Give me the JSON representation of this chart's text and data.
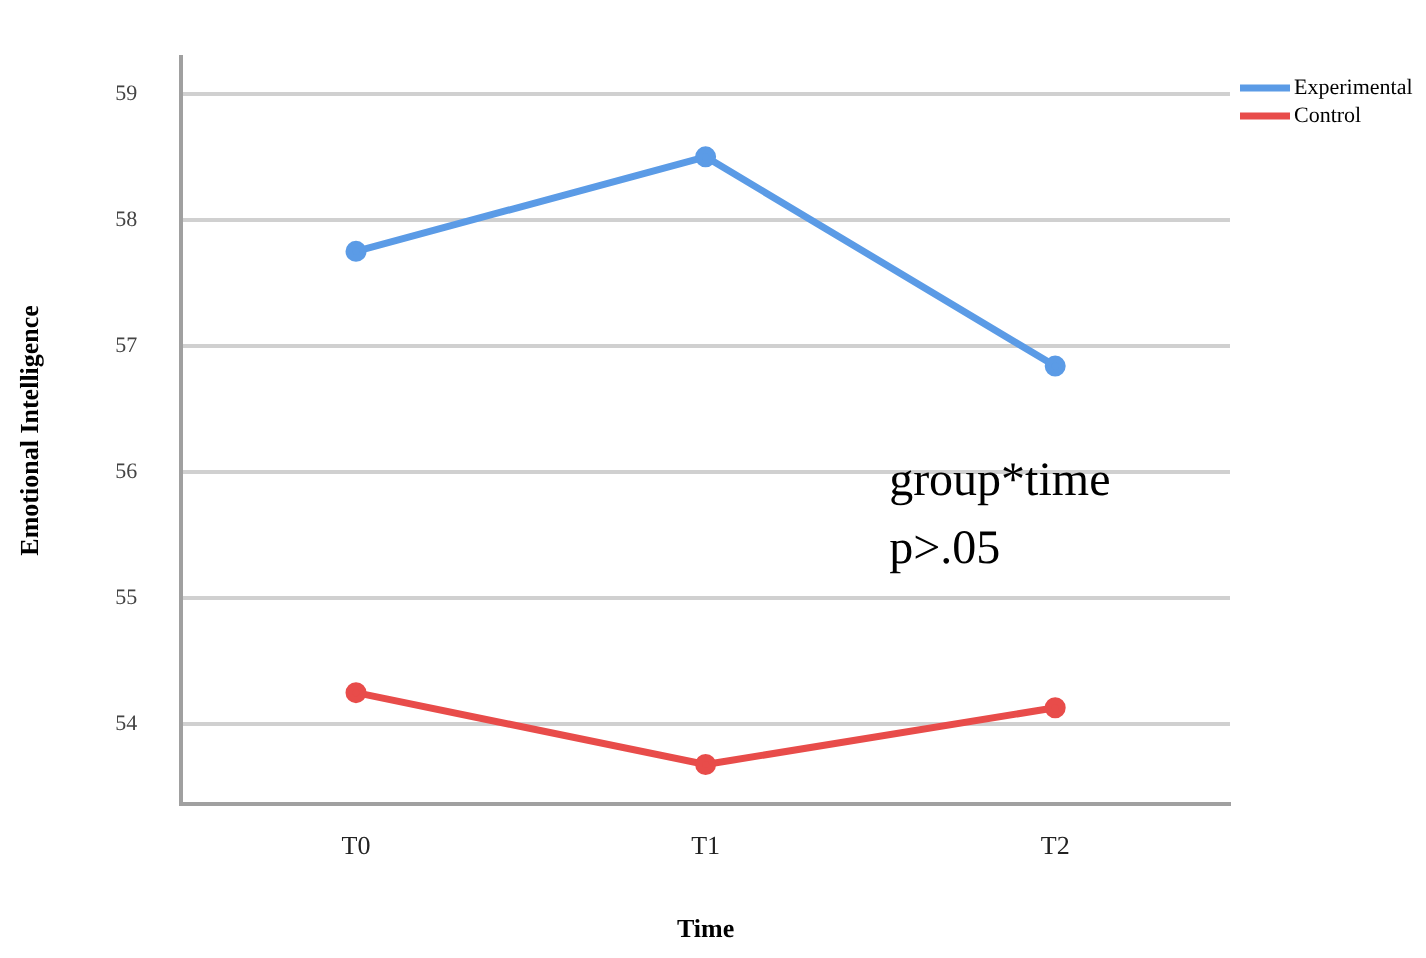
{
  "chart_data": {
    "type": "line",
    "xlabel": "Time",
    "ylabel": "Emotional Intelligence",
    "categories": [
      "T0",
      "T1",
      "T2"
    ],
    "series": [
      {
        "name": "Experimental",
        "color": "#5b9be6",
        "values": [
          57.75,
          58.5,
          56.84
        ]
      },
      {
        "name": "Control",
        "color": "#e84c4a",
        "values": [
          54.25,
          53.68,
          54.13
        ]
      }
    ],
    "ylim": [
      53.37,
      59.29
    ],
    "yticks": [
      54,
      55,
      56,
      57,
      58,
      59
    ],
    "grid": "y",
    "legend": "top right",
    "marker": "circle",
    "line_style": "solid",
    "annotations": [
      "group*time",
      "p>.05"
    ]
  }
}
